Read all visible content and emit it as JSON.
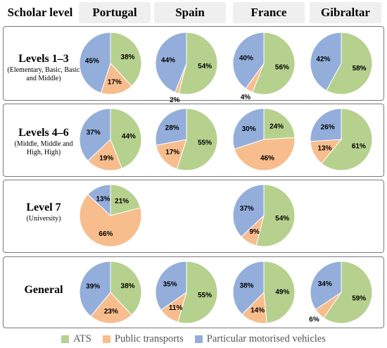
{
  "header": {
    "scholar_level": "Scholar level",
    "columns": [
      "Portugal",
      "Spain",
      "France",
      "Gibraltar"
    ]
  },
  "colors": {
    "ATS": "#b6d18e",
    "Public transports": "#f7bd8d",
    "Particular motorised vehicles": "#94aedb"
  },
  "rows": [
    {
      "title": "Levels 1–3",
      "subtitle": "(Elementary, Basic, Basic and Middle)"
    },
    {
      "title": "Levels 4–6",
      "subtitle": "(Middle, Middle and High, High)"
    },
    {
      "title": "Level 7",
      "subtitle": "(University)"
    },
    {
      "title": "General",
      "subtitle": ""
    }
  ],
  "legend": [
    "ATS",
    "Public transports",
    "Particular motorised vehicles"
  ],
  "chart_data": {
    "type": "pie",
    "categories": [
      "ATS",
      "Public transports",
      "Particular motorised vehicles"
    ],
    "pies": [
      {
        "row": "Levels 1–3",
        "country": "Portugal",
        "values": [
          38,
          17,
          45
        ]
      },
      {
        "row": "Levels 1–3",
        "country": "Spain",
        "values": [
          54,
          2,
          44
        ]
      },
      {
        "row": "Levels 1–3",
        "country": "France",
        "values": [
          56,
          4,
          40
        ]
      },
      {
        "row": "Levels 1–3",
        "country": "Gibraltar",
        "values": [
          58,
          0,
          42
        ]
      },
      {
        "row": "Levels 4–6",
        "country": "Portugal",
        "values": [
          44,
          19,
          37
        ]
      },
      {
        "row": "Levels 4–6",
        "country": "Spain",
        "values": [
          55,
          17,
          28
        ]
      },
      {
        "row": "Levels 4–6",
        "country": "France",
        "values": [
          24,
          46,
          30
        ]
      },
      {
        "row": "Levels 4–6",
        "country": "Gibraltar",
        "values": [
          61,
          13,
          26
        ]
      },
      {
        "row": "Level 7",
        "country": "Portugal",
        "values": [
          21,
          66,
          13
        ]
      },
      {
        "row": "Level 7",
        "country": "France",
        "values": [
          54,
          9,
          37
        ]
      },
      {
        "row": "General",
        "country": "Portugal",
        "values": [
          38,
          23,
          39
        ]
      },
      {
        "row": "General",
        "country": "Spain",
        "values": [
          55,
          11,
          35
        ]
      },
      {
        "row": "General",
        "country": "France",
        "values": [
          49,
          14,
          38
        ]
      },
      {
        "row": "General",
        "country": "Gibraltar",
        "values": [
          59,
          6,
          34
        ]
      }
    ]
  }
}
